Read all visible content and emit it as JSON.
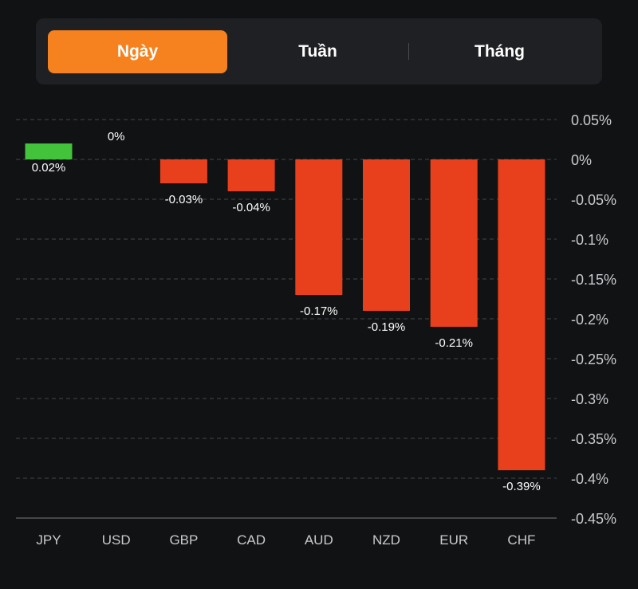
{
  "tabs": [
    {
      "label": "Ngày",
      "active": true
    },
    {
      "label": "Tuần",
      "active": false
    },
    {
      "label": "Tháng",
      "active": false
    }
  ],
  "colors": {
    "positive": "#43c23b",
    "negative": "#e8401c",
    "accent": "#f5821f",
    "background": "#111214"
  },
  "chart_data": {
    "type": "bar",
    "categories": [
      "JPY",
      "USD",
      "GBP",
      "CAD",
      "AUD",
      "NZD",
      "EUR",
      "CHF"
    ],
    "values": [
      0.02,
      0,
      -0.03,
      -0.04,
      -0.17,
      -0.19,
      -0.21,
      -0.39
    ],
    "value_labels": [
      "0.02%",
      "0%",
      "-0.03%",
      "-0.04%",
      "-0.17%",
      "-0.19%",
      "-0.21%",
      "-0.39%"
    ],
    "ylim": [
      -0.45,
      0.05
    ],
    "yticks": [
      0.05,
      0,
      -0.05,
      -0.1,
      -0.15,
      -0.2,
      -0.25,
      -0.3,
      -0.35,
      -0.4,
      -0.45
    ],
    "ytick_labels": [
      "0.05%",
      "0%",
      "-0.05%",
      "-0.1%",
      "-0.15%",
      "-0.2%",
      "-0.25%",
      "-0.3%",
      "-0.35%",
      "-0.4%",
      "-0.45%"
    ],
    "grid": true,
    "yaxis_position": "right"
  }
}
